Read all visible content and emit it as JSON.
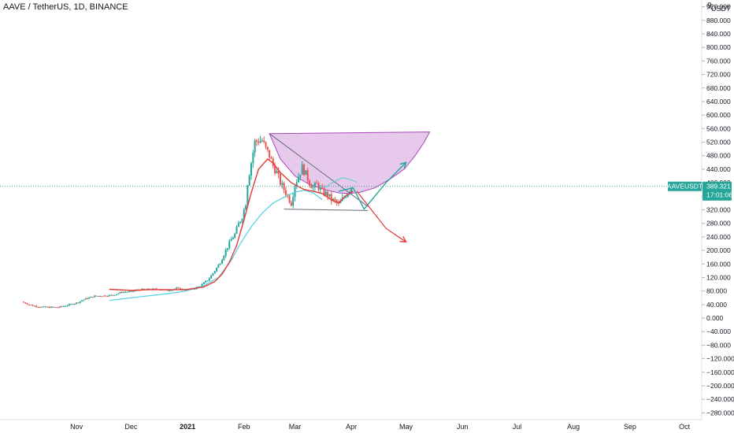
{
  "header": {
    "title": "AAVE / TetherUS, 1D, BINANCE",
    "scale_badge": "9",
    "currency": "USDT"
  },
  "price_tag": {
    "symbol": "AAVEUSDT",
    "price": "389.321",
    "countdown": "17:01:06",
    "value": 389.321
  },
  "colors": {
    "up": "#26a69a",
    "down": "#ef5350",
    "ma_fast": "#e53935",
    "ma_slow": "#4dd0e1",
    "cup_fill": "#ce93d8",
    "cup_stroke": "#ab47bc",
    "arrow_up": "#26a69a",
    "arrow_down": "#e53935",
    "wedge": "#5d6b7a",
    "tag": "#26a69a",
    "price_line": "#26a69a"
  },
  "chart_data": {
    "type": "candlestick",
    "y_axis": {
      "ticks": [
        "920.000",
        "880.000",
        "840.000",
        "800.000",
        "760.000",
        "720.000",
        "680.000",
        "640.000",
        "600.000",
        "560.000",
        "520.000",
        "480.000",
        "440.000",
        "400.000",
        "360.000",
        "320.000",
        "280.000",
        "240.000",
        "200.000",
        "160.000",
        "120.000",
        "80.000",
        "40.000",
        "0.000",
        "−40.000",
        "−80.000",
        "−120.000",
        "−160.000",
        "−200.000",
        "−240.000",
        "−280.000"
      ],
      "tick_values": [
        920,
        880,
        840,
        800,
        760,
        720,
        680,
        640,
        600,
        560,
        520,
        480,
        440,
        400,
        360,
        320,
        280,
        240,
        200,
        160,
        120,
        80,
        40,
        0,
        -40,
        -80,
        -120,
        -160,
        -200,
        -240,
        -280
      ],
      "range": [
        -300,
        940
      ]
    },
    "x_axis": {
      "ticks": [
        "Nov",
        "Dec",
        "2021",
        "Feb",
        "Mar",
        "Apr",
        "May",
        "Jun",
        "Jul",
        "Aug",
        "Sep",
        "Oct"
      ],
      "tick_days": [
        30,
        60,
        91,
        122,
        150,
        181,
        211,
        242,
        272,
        303,
        334,
        364
      ],
      "range": [
        -12,
        373
      ]
    },
    "price_closes": [
      [
        0,
        48
      ],
      [
        5,
        38
      ],
      [
        10,
        33
      ],
      [
        15,
        32
      ],
      [
        20,
        32
      ],
      [
        25,
        38
      ],
      [
        30,
        45
      ],
      [
        35,
        57
      ],
      [
        40,
        65
      ],
      [
        45,
        66
      ],
      [
        50,
        68
      ],
      [
        55,
        77
      ],
      [
        60,
        78
      ],
      [
        65,
        84
      ],
      [
        70,
        85
      ],
      [
        75,
        86
      ],
      [
        80,
        82
      ],
      [
        85,
        88
      ],
      [
        90,
        83
      ],
      [
        92,
        84
      ],
      [
        95,
        88
      ],
      [
        98,
        95
      ],
      [
        100,
        103
      ],
      [
        103,
        118
      ],
      [
        106,
        140
      ],
      [
        109,
        165
      ],
      [
        112,
        200
      ],
      [
        115,
        232
      ],
      [
        117,
        248
      ],
      [
        119,
        278
      ],
      [
        121,
        300
      ],
      [
        123,
        340
      ],
      [
        124,
        400
      ],
      [
        126,
        460
      ],
      [
        128,
        520
      ],
      [
        130,
        525
      ],
      [
        132,
        525
      ],
      [
        134,
        500
      ],
      [
        136,
        480
      ],
      [
        138,
        450
      ],
      [
        140,
        430
      ],
      [
        142,
        400
      ],
      [
        144,
        380
      ],
      [
        146,
        360
      ],
      [
        148,
        340
      ],
      [
        150,
        395
      ],
      [
        152,
        420
      ],
      [
        154,
        445
      ],
      [
        156,
        425
      ],
      [
        158,
        400
      ],
      [
        160,
        385
      ],
      [
        162,
        395
      ],
      [
        164,
        380
      ],
      [
        166,
        370
      ],
      [
        168,
        365
      ],
      [
        170,
        350
      ],
      [
        172,
        345
      ],
      [
        174,
        335
      ],
      [
        176,
        350
      ],
      [
        178,
        365
      ],
      [
        180,
        380
      ],
      [
        181,
        389
      ]
    ],
    "ma_fast": [
      [
        48,
        85
      ],
      [
        60,
        82
      ],
      [
        70,
        84
      ],
      [
        80,
        84
      ],
      [
        90,
        84
      ],
      [
        100,
        92
      ],
      [
        106,
        108
      ],
      [
        110,
        130
      ],
      [
        114,
        165
      ],
      [
        118,
        215
      ],
      [
        122,
        290
      ],
      [
        126,
        370
      ],
      [
        130,
        440
      ],
      [
        135,
        470
      ],
      [
        138,
        458
      ],
      [
        142,
        430
      ],
      [
        148,
        400
      ],
      [
        155,
        380
      ],
      [
        160,
        375
      ],
      [
        165,
        368
      ],
      [
        170,
        350
      ],
      [
        174,
        340
      ],
      [
        178,
        362
      ],
      [
        182,
        375
      ]
    ],
    "ma_slow": [
      [
        48,
        52
      ],
      [
        60,
        60
      ],
      [
        70,
        66
      ],
      [
        80,
        72
      ],
      [
        90,
        80
      ],
      [
        100,
        96
      ],
      [
        108,
        120
      ],
      [
        115,
        170
      ],
      [
        120,
        220
      ],
      [
        126,
        270
      ],
      [
        132,
        310
      ],
      [
        138,
        340
      ],
      [
        145,
        360
      ],
      [
        150,
        372
      ],
      [
        155,
        378
      ],
      [
        160,
        370
      ],
      [
        165,
        350
      ]
    ],
    "cup": [
      [
        136,
        545
      ],
      [
        142,
        470
      ],
      [
        150,
        420
      ],
      [
        158,
        395
      ],
      [
        166,
        380
      ],
      [
        174,
        370
      ],
      [
        180,
        368
      ],
      [
        186,
        372
      ],
      [
        194,
        385
      ],
      [
        202,
        410
      ],
      [
        210,
        440
      ],
      [
        216,
        480
      ],
      [
        221,
        520
      ],
      [
        224,
        550
      ]
    ],
    "wedge_upper": [
      [
        136,
        545
      ],
      [
        190,
        330
      ]
    ],
    "wedge_lower": [
      [
        144,
        322
      ],
      [
        190,
        318
      ]
    ],
    "arch": [
      [
        166,
        385
      ],
      [
        172,
        405
      ],
      [
        176,
        415
      ],
      [
        180,
        410
      ],
      [
        184,
        402
      ]
    ],
    "projection_up": [
      [
        174,
        375
      ],
      [
        182,
        385
      ],
      [
        188,
        322
      ],
      [
        200,
        400
      ],
      [
        211,
        460
      ]
    ],
    "projection_down": [
      [
        184,
        375
      ],
      [
        200,
        265
      ],
      [
        211,
        225
      ]
    ]
  }
}
